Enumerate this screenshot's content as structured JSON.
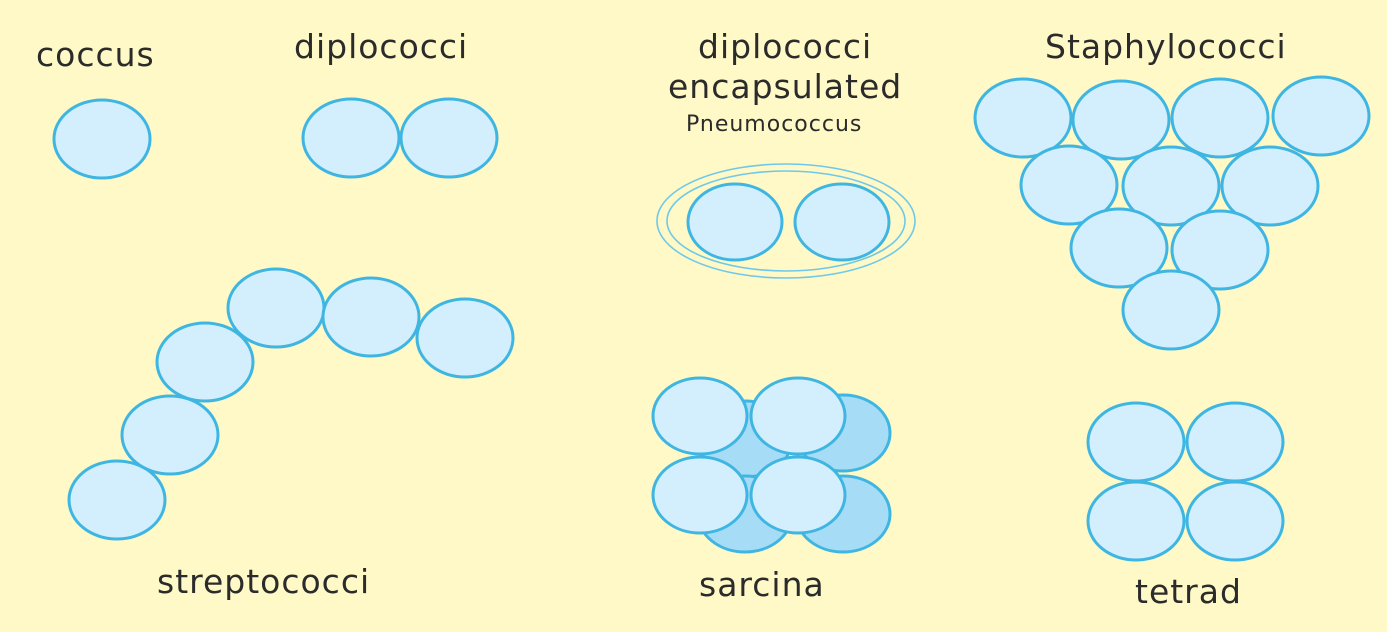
{
  "diagram": {
    "background": "#fef9c6",
    "cell_fill": "#d3eefc",
    "cell_back_fill": "#a7dcf7",
    "cell_stroke": "#3fb6e2",
    "capsule_stroke": "#6fc8ea",
    "label_color": "#2b2b2b"
  },
  "labels": {
    "coccus": "coccus",
    "diplococci": "diplococci",
    "diplococci_encapsulated_line1": "diplococci",
    "diplococci_encapsulated_line2": "encapsulated",
    "pneumococcus": "Pneumococcus",
    "staphylococci": "Staphylococci",
    "streptococci": "streptococci",
    "sarcina": "sarcina",
    "tetrad": "tetrad"
  }
}
